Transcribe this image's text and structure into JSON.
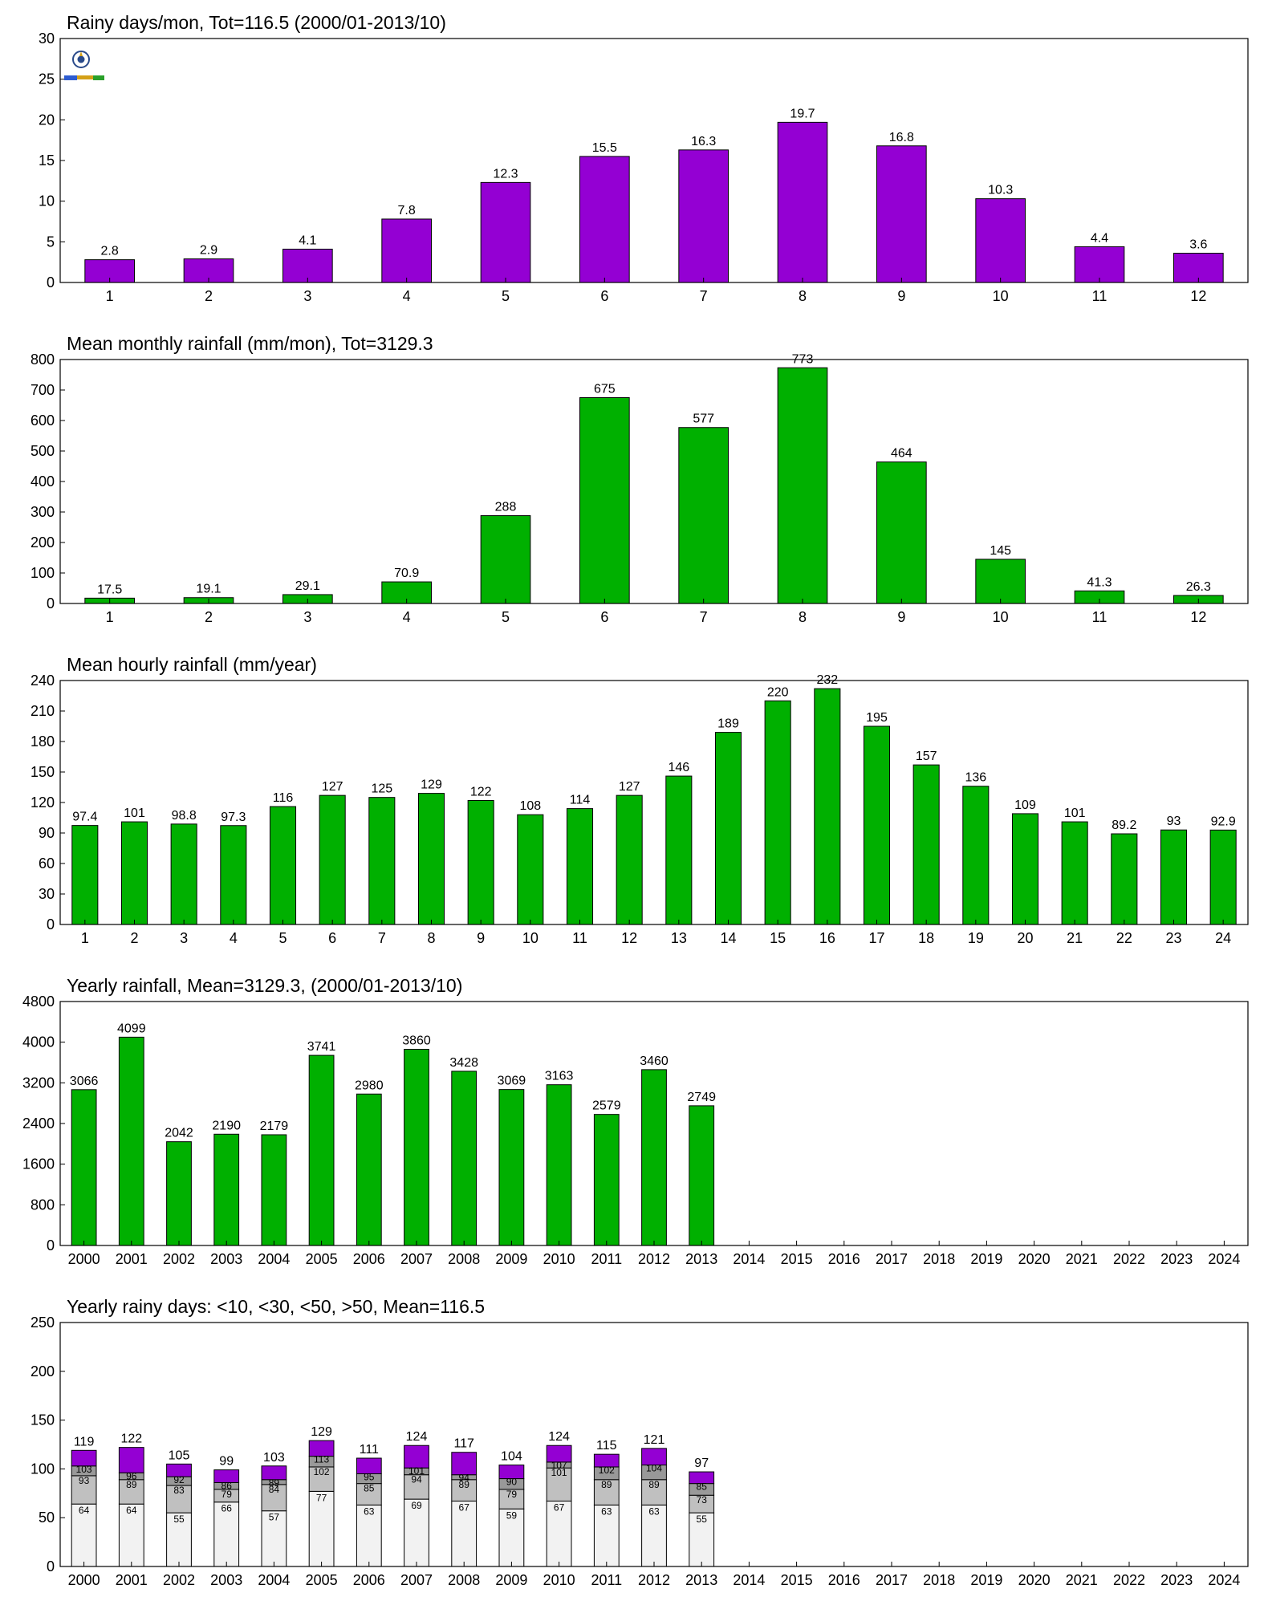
{
  "colors": {
    "purple": "#9400D3",
    "green": "#00B000",
    "seg_lt10": "#F2F2F2",
    "seg_lt30": "#C0C0C0",
    "seg_lt50": "#999999",
    "seg_gt50": "#9400D3",
    "axis": "#000000"
  },
  "logo": {
    "icon": "rain-lab-logo-icon"
  },
  "chart_data": [
    {
      "type": "bar",
      "title": "Rainy days/mon, Tot=116.5 (2000/01-2013/10)",
      "categories": [
        "1",
        "2",
        "3",
        "4",
        "5",
        "6",
        "7",
        "8",
        "9",
        "10",
        "11",
        "12"
      ],
      "values": [
        2.8,
        2.9,
        4.1,
        7.8,
        12.3,
        15.5,
        16.3,
        19.7,
        16.8,
        10.3,
        4.4,
        3.6
      ],
      "labels": [
        "2.8",
        "2.9",
        "4.1",
        "7.8",
        "12.3",
        "15.5",
        "16.3",
        "19.7",
        "16.8",
        "10.3",
        "4.4",
        "3.6"
      ],
      "ylim": [
        0,
        30
      ],
      "yticks": [
        0,
        5,
        10,
        15,
        20,
        25,
        30
      ],
      "color": "#9400D3",
      "grid": false
    },
    {
      "type": "bar",
      "title": "Mean monthly rainfall (mm/mon), Tot=3129.3",
      "categories": [
        "1",
        "2",
        "3",
        "4",
        "5",
        "6",
        "7",
        "8",
        "9",
        "10",
        "11",
        "12"
      ],
      "values": [
        17.5,
        19.1,
        29.1,
        70.9,
        288,
        675,
        577,
        773,
        464,
        145,
        41.3,
        26.3
      ],
      "labels": [
        "17.5",
        "19.1",
        "29.1",
        "70.9",
        "288",
        "675",
        "577",
        "773",
        "464",
        "145",
        "41.3",
        "26.3"
      ],
      "ylim": [
        0,
        800
      ],
      "yticks": [
        0,
        100,
        200,
        300,
        400,
        500,
        600,
        700,
        800
      ],
      "color": "#00B000",
      "grid": false
    },
    {
      "type": "bar",
      "title": "Mean hourly rainfall (mm/year)",
      "categories": [
        "1",
        "2",
        "3",
        "4",
        "5",
        "6",
        "7",
        "8",
        "9",
        "10",
        "11",
        "12",
        "13",
        "14",
        "15",
        "16",
        "17",
        "18",
        "19",
        "20",
        "21",
        "22",
        "23",
        "24"
      ],
      "values": [
        97.4,
        101,
        98.8,
        97.3,
        116,
        127,
        125,
        129,
        122,
        108,
        114,
        127,
        146,
        189,
        220,
        232,
        195,
        157,
        136,
        109,
        101,
        89.2,
        93,
        92.9
      ],
      "labels": [
        "97.4",
        "101",
        "98.8",
        "97.3",
        "116",
        "127",
        "125",
        "129",
        "122",
        "108",
        "114",
        "127",
        "146",
        "189",
        "220",
        "232",
        "195",
        "157",
        "136",
        "109",
        "101",
        "89.2",
        "93",
        "92.9"
      ],
      "ylim": [
        0,
        240
      ],
      "yticks": [
        0,
        30,
        60,
        90,
        120,
        150,
        180,
        210,
        240
      ],
      "color": "#00B000",
      "grid": false
    },
    {
      "type": "bar",
      "title": "Yearly rainfall, Mean=3129.3, (2000/01-2013/10)",
      "categories": [
        "2000",
        "2001",
        "2002",
        "2003",
        "2004",
        "2005",
        "2006",
        "2007",
        "2008",
        "2009",
        "2010",
        "2011",
        "2012",
        "2013",
        "2014",
        "2015",
        "2016",
        "2017",
        "2018",
        "2019",
        "2020",
        "2021",
        "2022",
        "2023",
        "2024"
      ],
      "values": [
        3066,
        4099,
        2042,
        2190,
        2179,
        3741,
        2980,
        3860,
        3428,
        3069,
        3163,
        2579,
        3460,
        2749,
        null,
        null,
        null,
        null,
        null,
        null,
        null,
        null,
        null,
        null,
        null
      ],
      "labels": [
        "3066",
        "4099",
        "2042",
        "2190",
        "2179",
        "3741",
        "2980",
        "3860",
        "3428",
        "3069",
        "3163",
        "2579",
        "3460",
        "2749",
        "",
        "",
        "",
        "",
        "",
        "",
        "",
        "",
        "",
        "",
        ""
      ],
      "ylim": [
        0,
        4800
      ],
      "yticks": [
        0,
        800,
        1600,
        2400,
        3200,
        4000,
        4800
      ],
      "color": "#00B000",
      "grid": false
    },
    {
      "type": "stacked-bar",
      "title": "Yearly rainy days: <10, <30, <50, >50, Mean=116.5",
      "categories": [
        "2000",
        "2001",
        "2002",
        "2003",
        "2004",
        "2005",
        "2006",
        "2007",
        "2008",
        "2009",
        "2010",
        "2011",
        "2012",
        "2013",
        "2014",
        "2015",
        "2016",
        "2017",
        "2018",
        "2019",
        "2020",
        "2021",
        "2022",
        "2023",
        "2024"
      ],
      "cumulative": [
        [
          64,
          93,
          103,
          119
        ],
        [
          64,
          89,
          96,
          122
        ],
        [
          55,
          83,
          92,
          105
        ],
        [
          66,
          79,
          86,
          99
        ],
        [
          57,
          84,
          89,
          103
        ],
        [
          77,
          102,
          113,
          129
        ],
        [
          63,
          85,
          95,
          111
        ],
        [
          69,
          94,
          101,
          124
        ],
        [
          67,
          89,
          94,
          117
        ],
        [
          59,
          79,
          90,
          104
        ],
        [
          67,
          101,
          107,
          124
        ],
        [
          63,
          89,
          102,
          115
        ],
        [
          63,
          89,
          104,
          121
        ],
        [
          55,
          73,
          85,
          97
        ],
        null,
        null,
        null,
        null,
        null,
        null,
        null,
        null,
        null,
        null,
        null
      ],
      "ylim": [
        0,
        250
      ],
      "yticks": [
        0,
        50,
        100,
        150,
        200,
        250
      ],
      "grid": false
    }
  ]
}
